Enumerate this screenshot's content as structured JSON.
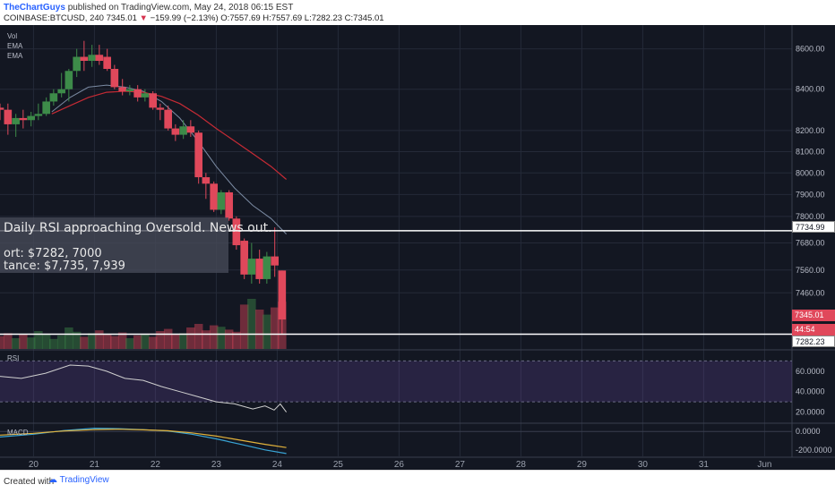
{
  "header": {
    "author": "TheChartGuys",
    "published": "published on TradingView.com, May 24, 2018 06:15 EST",
    "symbol": "COINBASE:BTCUSD, 240",
    "last": "7345.01",
    "change": "−159.99 (−2.13%)",
    "ohlc": "O:7557.69 H:7557.69 L:7282.23 C:7345.01"
  },
  "indicators": {
    "vol": "Vol",
    "ema1": "EMA",
    "ema2": "EMA",
    "rsi": "RSI",
    "macd": "MACD"
  },
  "annotation": {
    "line1": "Daily RSI approaching Oversold. News out.",
    "line2": "ort: $7282, 7000",
    "line3": "tance: $7,735, 7,939"
  },
  "price_tags": {
    "resistance": "7734.99",
    "last": "7345.01",
    "timer": "44:54",
    "support": "7282.23"
  },
  "footer": {
    "created": "Created with",
    "brand": "TradingView"
  },
  "colors": {
    "up": "#3d8b49",
    "down": "#e0485b",
    "ema_fast": "#7b8ba3",
    "ema_slow": "#c62b35",
    "rsi": "#d0d0d0",
    "macd": "#39a5d6",
    "signal": "#e2b23b",
    "background": "#131722"
  },
  "chart_data": [
    {
      "type": "candlestick",
      "title": "COINBASE:BTCUSD, 240",
      "x_ticks": [
        "20",
        "21",
        "22",
        "23",
        "24",
        "25",
        "26",
        "27",
        "28",
        "29",
        "30",
        "31",
        "Jun"
      ],
      "y_ticks": [
        8600,
        8400,
        8200,
        8100,
        8000,
        7900,
        7800,
        7680,
        7560,
        7460
      ],
      "y_tick_labels": [
        "8600.00",
        "8400.00",
        "8200.00",
        "8100.00",
        "8000.00",
        "7900.00",
        "7800.00",
        "7680.00",
        "7560.00",
        "7460.00"
      ],
      "scale": "log",
      "ylim": [
        7220,
        8720
      ],
      "x_range": [
        -0.55,
        12.45
      ],
      "grid": true,
      "candles": [
        {
          "t": -0.55,
          "o": 8310,
          "h": 8330,
          "l": 8250,
          "c": 8300
        },
        {
          "t": -0.42,
          "o": 8300,
          "h": 8330,
          "l": 8180,
          "c": 8230
        },
        {
          "t": -0.29,
          "o": 8230,
          "h": 8280,
          "l": 8170,
          "c": 8260
        },
        {
          "t": -0.17,
          "o": 8260,
          "h": 8300,
          "l": 8210,
          "c": 8250
        },
        {
          "t": -0.04,
          "o": 8250,
          "h": 8290,
          "l": 8220,
          "c": 8270
        },
        {
          "t": 0.08,
          "o": 8270,
          "h": 8330,
          "l": 8250,
          "c": 8280
        },
        {
          "t": 0.21,
          "o": 8280,
          "h": 8360,
          "l": 8270,
          "c": 8340
        },
        {
          "t": 0.33,
          "o": 8340,
          "h": 8400,
          "l": 8320,
          "c": 8380
        },
        {
          "t": 0.46,
          "o": 8380,
          "h": 8480,
          "l": 8360,
          "c": 8400
        },
        {
          "t": 0.58,
          "o": 8400,
          "h": 8500,
          "l": 8340,
          "c": 8490
        },
        {
          "t": 0.71,
          "o": 8490,
          "h": 8600,
          "l": 8460,
          "c": 8560
        },
        {
          "t": 0.83,
          "o": 8560,
          "h": 8640,
          "l": 8490,
          "c": 8540
        },
        {
          "t": 0.96,
          "o": 8540,
          "h": 8620,
          "l": 8510,
          "c": 8570
        },
        {
          "t": 1.08,
          "o": 8570,
          "h": 8620,
          "l": 8520,
          "c": 8540
        },
        {
          "t": 1.21,
          "o": 8560,
          "h": 8600,
          "l": 8490,
          "c": 8500
        },
        {
          "t": 1.33,
          "o": 8500,
          "h": 8520,
          "l": 8400,
          "c": 8410
        },
        {
          "t": 1.46,
          "o": 8410,
          "h": 8450,
          "l": 8370,
          "c": 8390
        },
        {
          "t": 1.58,
          "o": 8390,
          "h": 8420,
          "l": 8370,
          "c": 8400
        },
        {
          "t": 1.71,
          "o": 8400,
          "h": 8420,
          "l": 8340,
          "c": 8360
        },
        {
          "t": 1.83,
          "o": 8360,
          "h": 8400,
          "l": 8340,
          "c": 8380
        },
        {
          "t": 1.96,
          "o": 8380,
          "h": 8390,
          "l": 8300,
          "c": 8310
        },
        {
          "t": 2.08,
          "o": 8310,
          "h": 8330,
          "l": 8250,
          "c": 8300
        },
        {
          "t": 2.21,
          "o": 8300,
          "h": 8320,
          "l": 8200,
          "c": 8210
        },
        {
          "t": 2.33,
          "o": 8210,
          "h": 8230,
          "l": 8150,
          "c": 8180
        },
        {
          "t": 2.46,
          "o": 8180,
          "h": 8250,
          "l": 8160,
          "c": 8220
        },
        {
          "t": 2.58,
          "o": 8220,
          "h": 8250,
          "l": 8170,
          "c": 8190
        },
        {
          "t": 2.71,
          "o": 8190,
          "h": 8200,
          "l": 7950,
          "c": 7980
        },
        {
          "t": 2.83,
          "o": 7980,
          "h": 8000,
          "l": 7880,
          "c": 7950
        },
        {
          "t": 2.96,
          "o": 7950,
          "h": 7960,
          "l": 7820,
          "c": 7830
        },
        {
          "t": 3.08,
          "o": 7830,
          "h": 7920,
          "l": 7810,
          "c": 7910
        },
        {
          "t": 3.21,
          "o": 7910,
          "h": 7920,
          "l": 7780,
          "c": 7790
        },
        {
          "t": 3.33,
          "o": 7790,
          "h": 7800,
          "l": 7650,
          "c": 7670
        },
        {
          "t": 3.46,
          "o": 7690,
          "h": 7700,
          "l": 7520,
          "c": 7540
        },
        {
          "t": 3.58,
          "o": 7540,
          "h": 7680,
          "l": 7500,
          "c": 7610
        },
        {
          "t": 3.71,
          "o": 7610,
          "h": 7650,
          "l": 7500,
          "c": 7520
        },
        {
          "t": 3.83,
          "o": 7520,
          "h": 7640,
          "l": 7500,
          "c": 7620
        },
        {
          "t": 3.96,
          "o": 7620,
          "h": 7750,
          "l": 7530,
          "c": 7580
        },
        {
          "t": 4.08,
          "o": 7557.69,
          "h": 7557.69,
          "l": 7282.23,
          "c": 7345.01
        }
      ],
      "ema_fast": [
        {
          "t": 0.3,
          "y": 8290
        },
        {
          "t": 0.6,
          "y": 8360
        },
        {
          "t": 0.9,
          "y": 8410
        },
        {
          "t": 1.2,
          "y": 8420
        },
        {
          "t": 1.5,
          "y": 8410
        },
        {
          "t": 1.8,
          "y": 8390
        },
        {
          "t": 2.1,
          "y": 8340
        },
        {
          "t": 2.4,
          "y": 8260
        },
        {
          "t": 2.7,
          "y": 8150
        },
        {
          "t": 3.0,
          "y": 8030
        },
        {
          "t": 3.3,
          "y": 7930
        },
        {
          "t": 3.6,
          "y": 7850
        },
        {
          "t": 3.9,
          "y": 7790
        },
        {
          "t": 4.15,
          "y": 7720
        }
      ],
      "ema_slow": [
        {
          "t": 0.3,
          "y": 8280
        },
        {
          "t": 0.6,
          "y": 8320
        },
        {
          "t": 0.9,
          "y": 8360
        },
        {
          "t": 1.2,
          "y": 8385
        },
        {
          "t": 1.5,
          "y": 8390
        },
        {
          "t": 1.8,
          "y": 8385
        },
        {
          "t": 2.1,
          "y": 8365
        },
        {
          "t": 2.4,
          "y": 8330
        },
        {
          "t": 2.7,
          "y": 8275
        },
        {
          "t": 3.0,
          "y": 8210
        },
        {
          "t": 3.3,
          "y": 8150
        },
        {
          "t": 3.6,
          "y": 8090
        },
        {
          "t": 3.9,
          "y": 8030
        },
        {
          "t": 4.15,
          "y": 7970
        }
      ],
      "resistance_line": 7734.99,
      "support_line": 7282.23
    },
    {
      "type": "bar",
      "title": "Vol",
      "values": [
        18,
        22,
        15,
        20,
        16,
        25,
        21,
        14,
        19,
        30,
        24,
        17,
        22,
        26,
        20,
        18,
        23,
        15,
        19,
        21,
        17,
        25,
        28,
        20,
        22,
        30,
        35,
        26,
        33,
        31,
        27,
        24,
        62,
        70,
        55,
        48,
        58,
        66
      ],
      "ylim": [
        0,
        75
      ]
    },
    {
      "type": "line",
      "title": "RSI",
      "y_ticks": [
        "60.0000",
        "40.0000",
        "20.0000"
      ],
      "ylim": [
        10,
        80
      ],
      "values": [
        {
          "t": -0.55,
          "y": 55
        },
        {
          "t": -0.2,
          "y": 53
        },
        {
          "t": 0.2,
          "y": 58
        },
        {
          "t": 0.6,
          "y": 66
        },
        {
          "t": 0.9,
          "y": 65
        },
        {
          "t": 1.2,
          "y": 60
        },
        {
          "t": 1.5,
          "y": 53
        },
        {
          "t": 1.8,
          "y": 51
        },
        {
          "t": 2.1,
          "y": 45
        },
        {
          "t": 2.4,
          "y": 40
        },
        {
          "t": 2.7,
          "y": 35
        },
        {
          "t": 3.0,
          "y": 30
        },
        {
          "t": 3.3,
          "y": 28
        },
        {
          "t": 3.6,
          "y": 23
        },
        {
          "t": 3.8,
          "y": 26
        },
        {
          "t": 3.95,
          "y": 22
        },
        {
          "t": 4.05,
          "y": 28
        },
        {
          "t": 4.15,
          "y": 20
        }
      ],
      "band": [
        30,
        70
      ]
    },
    {
      "type": "line",
      "title": "MACD",
      "y_ticks": [
        "0.0000",
        "-200.0000"
      ],
      "ylim": [
        -270,
        80
      ],
      "macd": [
        {
          "t": -0.55,
          "y": -60
        },
        {
          "t": 0.0,
          "y": -30
        },
        {
          "t": 0.5,
          "y": 10
        },
        {
          "t": 1.0,
          "y": 35
        },
        {
          "t": 1.4,
          "y": 30
        },
        {
          "t": 1.8,
          "y": 20
        },
        {
          "t": 2.2,
          "y": 5
        },
        {
          "t": 2.6,
          "y": -30
        },
        {
          "t": 3.0,
          "y": -80
        },
        {
          "t": 3.4,
          "y": -140
        },
        {
          "t": 3.8,
          "y": -200
        },
        {
          "t": 4.15,
          "y": -240
        }
      ],
      "signal": [
        {
          "t": -0.55,
          "y": -40
        },
        {
          "t": 0.0,
          "y": -20
        },
        {
          "t": 0.5,
          "y": 5
        },
        {
          "t": 1.0,
          "y": 20
        },
        {
          "t": 1.4,
          "y": 25
        },
        {
          "t": 1.8,
          "y": 18
        },
        {
          "t": 2.2,
          "y": 8
        },
        {
          "t": 2.6,
          "y": -15
        },
        {
          "t": 3.0,
          "y": -50
        },
        {
          "t": 3.4,
          "y": -95
        },
        {
          "t": 3.8,
          "y": -140
        },
        {
          "t": 4.15,
          "y": -175
        }
      ]
    }
  ]
}
